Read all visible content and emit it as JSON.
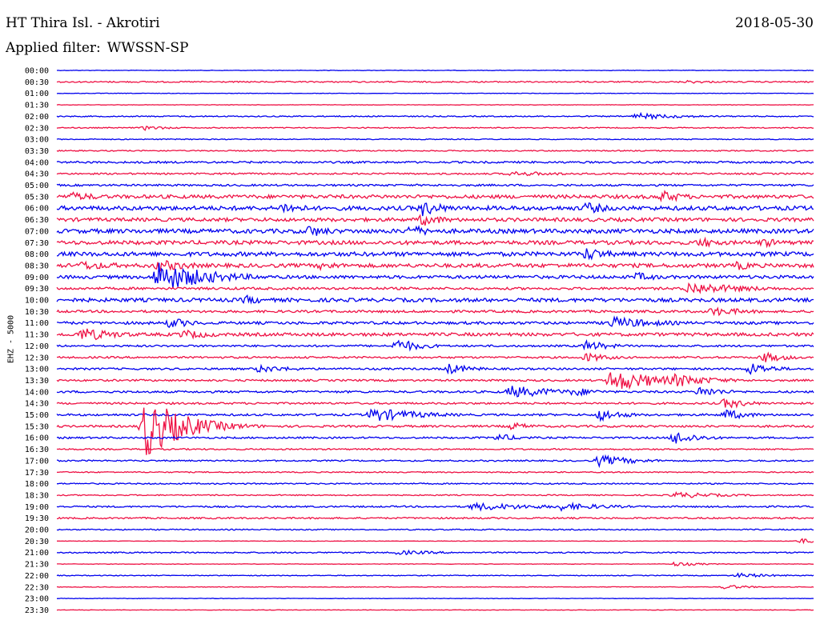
{
  "header": {
    "station": "HT Thira Isl. - Akrotiri",
    "date": "2018-05-30",
    "filter_label": "Applied filter:",
    "filter_value": "WWSSN-SP"
  },
  "channel_label": "EHZ - 5000",
  "colors": {
    "even_trace": "#0000ee",
    "odd_trace": "#ee1144"
  },
  "chart_data": {
    "type": "line",
    "title": "HT Thira Isl. - Akrotiri",
    "ylabel": "EHZ - 5000",
    "xlabel": "",
    "row_labels": [
      "00:00",
      "00:30",
      "01:00",
      "01:30",
      "02:00",
      "02:30",
      "03:00",
      "03:30",
      "04:00",
      "04:30",
      "05:00",
      "05:30",
      "06:00",
      "06:30",
      "07:00",
      "07:30",
      "08:00",
      "08:30",
      "09:00",
      "09:30",
      "10:00",
      "10:30",
      "11:00",
      "11:30",
      "12:00",
      "12:30",
      "13:00",
      "13:30",
      "14:00",
      "14:30",
      "15:00",
      "15:30",
      "16:00",
      "16:30",
      "17:00",
      "17:30",
      "18:00",
      "18:30",
      "19:00",
      "19:30",
      "20:00",
      "20:30",
      "21:00",
      "21:30",
      "22:00",
      "22:30",
      "23:00",
      "23:30"
    ],
    "noise_level": [
      0.3,
      0.8,
      0.3,
      0.3,
      0.7,
      0.6,
      0.6,
      0.7,
      1.2,
      1.0,
      1.2,
      2.2,
      2.6,
      2.2,
      2.6,
      2.4,
      2.6,
      2.4,
      2.0,
      1.5,
      2.3,
      1.5,
      1.7,
      2.0,
      1.2,
      1.2,
      1.2,
      1.2,
      1.3,
      1.2,
      1.3,
      1.3,
      1.1,
      0.9,
      0.9,
      0.7,
      0.8,
      0.7,
      1.0,
      1.0,
      0.7,
      0.3,
      0.8,
      0.3,
      0.5,
      0.4,
      0.3,
      0.3
    ],
    "events": [
      {
        "row": 1,
        "minute": 25,
        "amp": 2,
        "dur": 1.5
      },
      {
        "row": 4,
        "minute": 23,
        "amp": 4,
        "dur": 2
      },
      {
        "row": 5,
        "minute": 3.5,
        "amp": 3,
        "dur": 1
      },
      {
        "row": 9,
        "minute": 18,
        "amp": 3,
        "dur": 3
      },
      {
        "row": 11,
        "minute": 0.5,
        "amp": 6,
        "dur": 1.5
      },
      {
        "row": 11,
        "minute": 24,
        "amp": 8,
        "dur": 1
      },
      {
        "row": 12,
        "minute": 9,
        "amp": 8,
        "dur": 1
      },
      {
        "row": 12,
        "minute": 14.5,
        "amp": 10,
        "dur": 1
      },
      {
        "row": 12,
        "minute": 21,
        "amp": 8,
        "dur": 1
      },
      {
        "row": 13,
        "minute": 14.5,
        "amp": 8,
        "dur": 1
      },
      {
        "row": 14,
        "minute": 10,
        "amp": 8,
        "dur": 1
      },
      {
        "row": 14,
        "minute": 14,
        "amp": 8,
        "dur": 1
      },
      {
        "row": 15,
        "minute": 25.5,
        "amp": 7,
        "dur": 1
      },
      {
        "row": 15,
        "minute": 28,
        "amp": 6,
        "dur": 1
      },
      {
        "row": 16,
        "minute": 21,
        "amp": 9,
        "dur": 1
      },
      {
        "row": 17,
        "minute": 1,
        "amp": 6,
        "dur": 2
      },
      {
        "row": 17,
        "minute": 4,
        "amp": 8,
        "dur": 1.5
      },
      {
        "row": 17,
        "minute": 10.5,
        "amp": 6,
        "dur": 1
      },
      {
        "row": 17,
        "minute": 27,
        "amp": 6,
        "dur": 1
      },
      {
        "row": 18,
        "minute": 4,
        "amp": 20,
        "dur": 2
      },
      {
        "row": 18,
        "minute": 23,
        "amp": 6,
        "dur": 1
      },
      {
        "row": 19,
        "minute": 25,
        "amp": 8,
        "dur": 2.5
      },
      {
        "row": 20,
        "minute": 7.5,
        "amp": 6,
        "dur": 1
      },
      {
        "row": 21,
        "minute": 26,
        "amp": 6,
        "dur": 1.5
      },
      {
        "row": 22,
        "minute": 4.5,
        "amp": 7,
        "dur": 1
      },
      {
        "row": 22,
        "minute": 22,
        "amp": 8,
        "dur": 2
      },
      {
        "row": 23,
        "minute": 1,
        "amp": 9,
        "dur": 1.5
      },
      {
        "row": 23,
        "minute": 5,
        "amp": 6,
        "dur": 1.5
      },
      {
        "row": 24,
        "minute": 13.5,
        "amp": 9,
        "dur": 1
      },
      {
        "row": 24,
        "minute": 21,
        "amp": 7,
        "dur": 1
      },
      {
        "row": 25,
        "minute": 21,
        "amp": 6,
        "dur": 1
      },
      {
        "row": 25,
        "minute": 28,
        "amp": 7,
        "dur": 1
      },
      {
        "row": 26,
        "minute": 8,
        "amp": 5,
        "dur": 1.5
      },
      {
        "row": 26,
        "minute": 15.5,
        "amp": 7,
        "dur": 1
      },
      {
        "row": 26,
        "minute": 27.5,
        "amp": 8,
        "dur": 1
      },
      {
        "row": 27,
        "minute": 22,
        "amp": 14,
        "dur": 2
      },
      {
        "row": 27,
        "minute": 24.5,
        "amp": 9,
        "dur": 1.5
      },
      {
        "row": 28,
        "minute": 18,
        "amp": 8,
        "dur": 2
      },
      {
        "row": 28,
        "minute": 20.5,
        "amp": 6,
        "dur": 1
      },
      {
        "row": 28,
        "minute": 25.5,
        "amp": 7,
        "dur": 1
      },
      {
        "row": 29,
        "minute": 26.5,
        "amp": 7,
        "dur": 1
      },
      {
        "row": 30,
        "minute": 12.5,
        "amp": 9,
        "dur": 2
      },
      {
        "row": 30,
        "minute": 21.5,
        "amp": 8,
        "dur": 1
      },
      {
        "row": 30,
        "minute": 26.5,
        "amp": 7,
        "dur": 1
      },
      {
        "row": 31,
        "minute": 3.5,
        "amp": 40,
        "dur": 1.5
      },
      {
        "row": 31,
        "minute": 18,
        "amp": 5,
        "dur": 1
      },
      {
        "row": 32,
        "minute": 17.5,
        "amp": 5,
        "dur": 1
      },
      {
        "row": 32,
        "minute": 24.5,
        "amp": 9,
        "dur": 1
      },
      {
        "row": 34,
        "minute": 21.5,
        "amp": 7,
        "dur": 1.5
      },
      {
        "row": 37,
        "minute": 24.5,
        "amp": 4,
        "dur": 2
      },
      {
        "row": 38,
        "minute": 16.5,
        "amp": 5,
        "dur": 3
      },
      {
        "row": 38,
        "minute": 20,
        "amp": 5,
        "dur": 2
      },
      {
        "row": 41,
        "minute": 29.5,
        "amp": 3,
        "dur": 1
      },
      {
        "row": 42,
        "minute": 13.5,
        "amp": 3,
        "dur": 2
      },
      {
        "row": 43,
        "minute": 24.5,
        "amp": 3,
        "dur": 1
      },
      {
        "row": 44,
        "minute": 27,
        "amp": 3,
        "dur": 1.5
      },
      {
        "row": 45,
        "minute": 26.5,
        "amp": 3,
        "dur": 1
      }
    ]
  }
}
